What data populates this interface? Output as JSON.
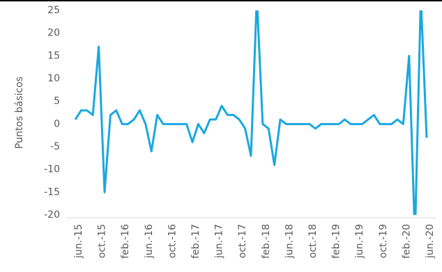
{
  "chart_data": {
    "type": "line",
    "y_label": "Puntos básicos",
    "categories": [
      "jun.-15",
      null,
      null,
      null,
      "oct.-15",
      null,
      null,
      null,
      "feb.-16",
      null,
      null,
      null,
      "jun.-16",
      null,
      null,
      null,
      "oct.-16",
      null,
      null,
      null,
      "feb.-17",
      null,
      null,
      null,
      "jun.-17",
      null,
      null,
      null,
      "oct.-17",
      null,
      null,
      null,
      "feb.-18",
      null,
      null,
      null,
      "jun.-18",
      null,
      null,
      null,
      "oct.-18",
      null,
      null,
      null,
      "feb.-19",
      null,
      null,
      null,
      "jun.-19",
      null,
      null,
      null,
      "oct.-19",
      null,
      null,
      null,
      "feb.-20",
      null,
      null,
      null,
      "jun.-20"
    ],
    "series": [
      {
        "color": "#1aa7e0",
        "values": [
          1,
          3,
          3,
          2,
          17,
          -15,
          2,
          3,
          0,
          0,
          1,
          3,
          0,
          -6,
          2,
          0,
          0,
          0,
          0,
          0,
          -4,
          0,
          -2,
          1,
          1,
          4,
          2,
          2,
          1,
          -1,
          -7,
          28,
          0,
          -1,
          -9,
          1,
          0,
          0,
          0,
          0,
          0,
          -1,
          0,
          0,
          0,
          0,
          1,
          0,
          0,
          0,
          1,
          2,
          0,
          0,
          0,
          1,
          0,
          15,
          -25,
          28,
          -3
        ]
      }
    ],
    "ylim": [
      -20,
      25
    ],
    "yticks": [
      -20,
      -15,
      -10,
      -5,
      0,
      5,
      10,
      15,
      20,
      25
    ],
    "grid": false
  }
}
